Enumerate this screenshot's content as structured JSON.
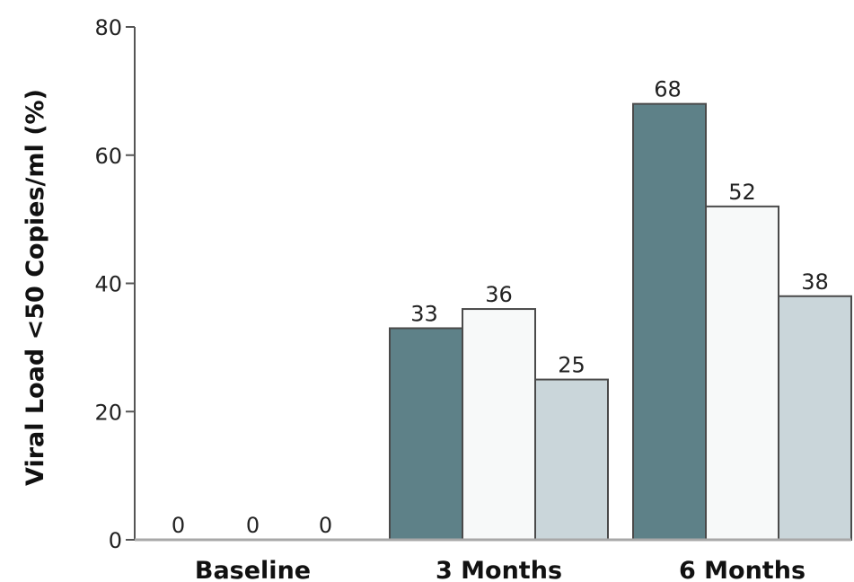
{
  "chart_data": {
    "type": "bar",
    "title": "",
    "xlabel": "",
    "ylabel": "Viral Load <50 Copies/ml (%)",
    "ylim": [
      0,
      80
    ],
    "yticks": [
      "0",
      "20",
      "40",
      "60",
      "80"
    ],
    "categories": [
      "Baseline",
      "3 Months",
      "6 Months"
    ],
    "series": [
      {
        "values": [
          0,
          33,
          68
        ],
        "color": "#5e8188"
      },
      {
        "values": [
          0,
          36,
          52
        ],
        "color": "#f7f9f9"
      },
      {
        "values": [
          0,
          25,
          38
        ],
        "color": "#cad6da"
      }
    ],
    "value_labels": [
      [
        "0",
        "33",
        "68"
      ],
      [
        "0",
        "36",
        "52"
      ],
      [
        "0",
        "25",
        "38"
      ]
    ],
    "legend": "none",
    "grid": false
  }
}
